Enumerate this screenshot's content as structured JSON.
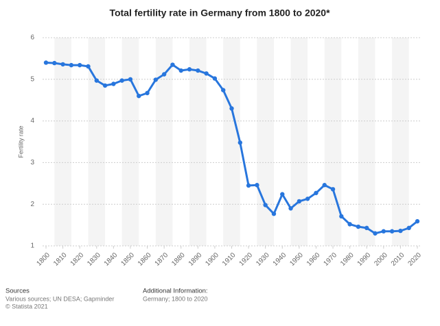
{
  "chart_data": {
    "type": "line",
    "title": "Total fertility rate in Germany from 1800 to 2020*",
    "y_label": "Fertility rate",
    "x": [
      1800,
      1805,
      1810,
      1815,
      1820,
      1825,
      1830,
      1835,
      1840,
      1845,
      1850,
      1855,
      1860,
      1865,
      1870,
      1875,
      1880,
      1885,
      1890,
      1895,
      1900,
      1905,
      1910,
      1915,
      1920,
      1925,
      1930,
      1935,
      1940,
      1945,
      1950,
      1955,
      1960,
      1965,
      1970,
      1975,
      1980,
      1985,
      1990,
      1995,
      2000,
      2005,
      2010,
      2015,
      2020
    ],
    "series": [
      {
        "color": "#2876dd",
        "values": [
          5.4,
          5.39,
          5.36,
          5.34,
          5.34,
          5.31,
          4.97,
          4.85,
          4.89,
          4.97,
          5.0,
          4.6,
          4.67,
          4.99,
          5.12,
          5.35,
          5.21,
          5.24,
          5.21,
          5.14,
          5.02,
          4.74,
          4.3,
          3.48,
          2.45,
          2.46,
          1.98,
          1.77,
          2.24,
          1.9,
          2.07,
          2.13,
          2.27,
          2.46,
          2.36,
          1.71,
          1.52,
          1.46,
          1.43,
          1.3,
          1.35,
          1.35,
          1.36,
          1.43,
          1.59
        ]
      }
    ],
    "xlim": [
      1800,
      2020
    ],
    "xticks": [
      1800,
      1810,
      1820,
      1830,
      1840,
      1850,
      1860,
      1870,
      1880,
      1890,
      1900,
      1910,
      1920,
      1930,
      1940,
      1950,
      1960,
      1970,
      1980,
      1990,
      2000,
      2010,
      2020
    ],
    "ylim": [
      1,
      6
    ],
    "yticks": [
      1,
      2,
      3,
      4,
      5,
      6
    ],
    "grid": true
  },
  "footer": {
    "sources_title": "Sources",
    "sources": "Various sources; UN DESA; Gapminder",
    "copyright": "© Statista 2021",
    "info_title": "Additional Information:",
    "info": "Germany; 1800 to 2020"
  }
}
